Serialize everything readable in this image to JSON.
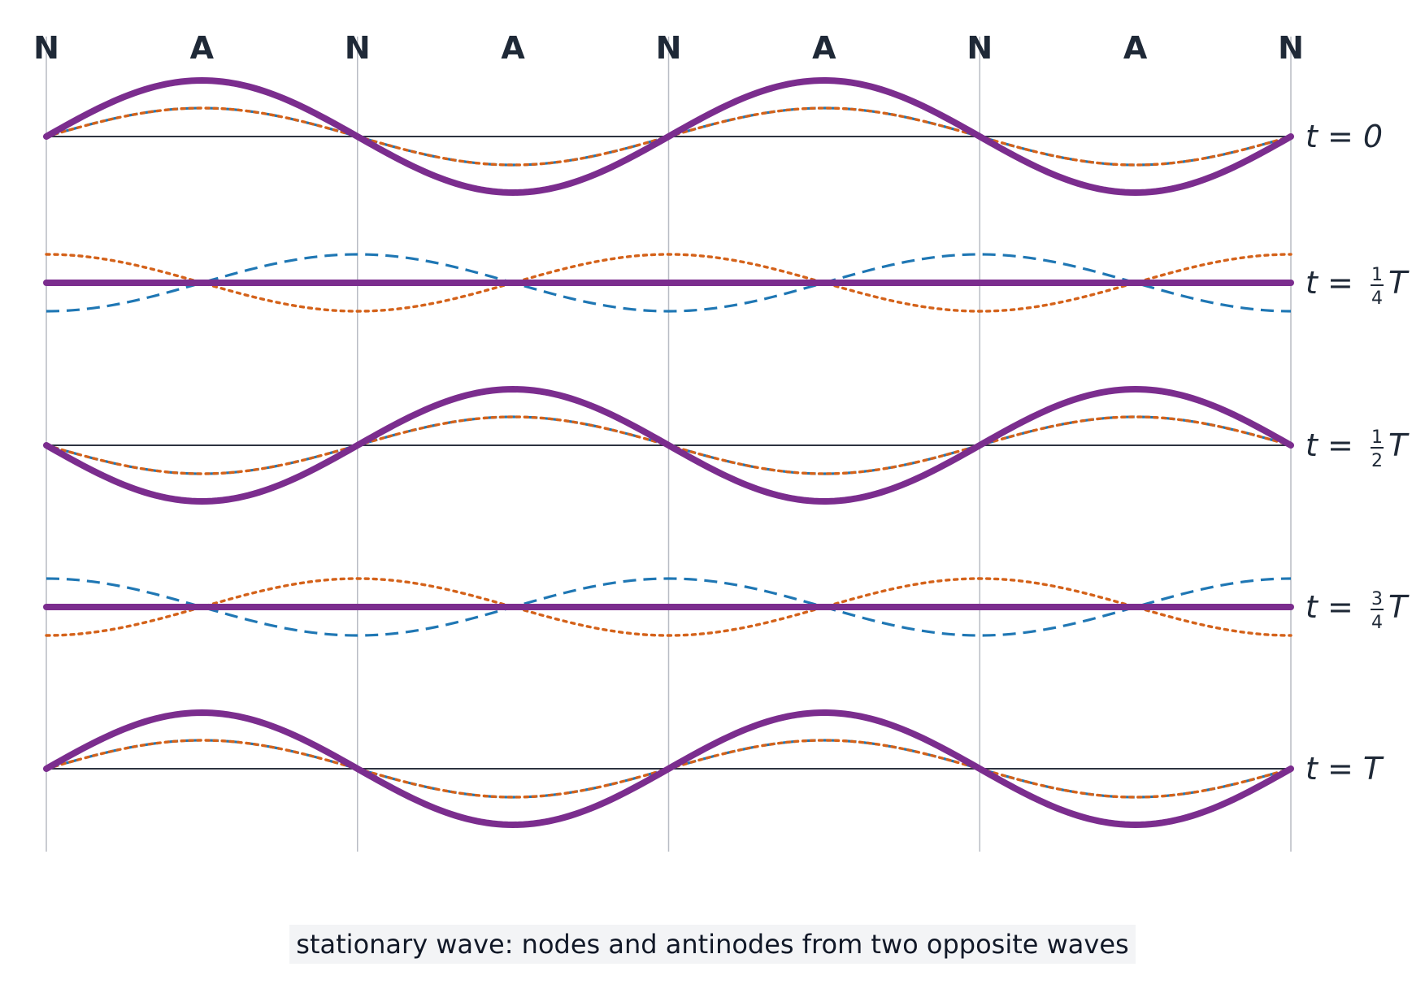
{
  "markers": [
    "N",
    "A",
    "N",
    "A",
    "N",
    "A",
    "N",
    "A",
    "N"
  ],
  "rows": [
    {
      "label": {
        "main": "t = 0"
      },
      "phase": 0
    },
    {
      "label": {
        "main": "t = ",
        "num": "1",
        "den": "4",
        "tail": "T"
      },
      "phase": 0.25
    },
    {
      "label": {
        "main": "t = ",
        "num": "1",
        "den": "2",
        "tail": "T"
      },
      "phase": 0.5
    },
    {
      "label": {
        "main": "t = ",
        "num": "3",
        "den": "4",
        "tail": "T"
      },
      "phase": 0.75
    },
    {
      "label": {
        "main": "t = T"
      },
      "phase": 1
    }
  ],
  "waves": [
    {
      "key": "sum",
      "color": "#7b2d8e",
      "style": "solid"
    },
    {
      "key": "forward",
      "color": "#1f77b4",
      "style": "dashed"
    },
    {
      "key": "backward",
      "color": "#d4621a",
      "style": "dotted"
    }
  ],
  "wavelengths_shown": 2,
  "caption": "stationary wave: nodes and antinodes from two opposite waves"
}
